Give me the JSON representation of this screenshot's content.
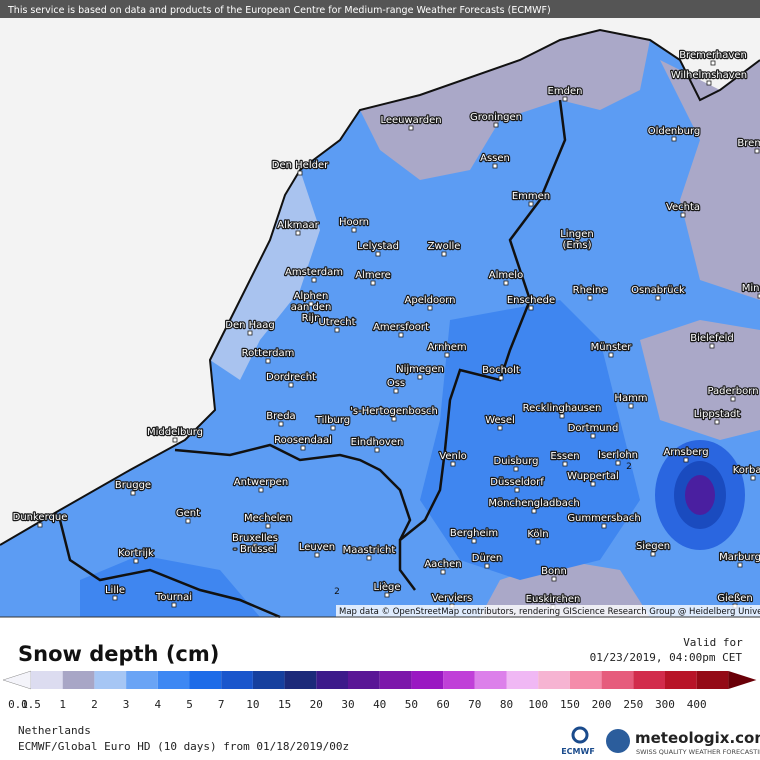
{
  "header": {
    "notice": "This service is based on data and products of the European Centre for Medium-range Weather Forecasts (ECMWF)"
  },
  "map": {
    "cities": [
      [
        "Bremerhaven"
      ],
      [
        "Wilhelmshaven"
      ],
      [
        "Emden"
      ],
      [
        "Leeuwarden"
      ],
      [
        "Groningen"
      ],
      [
        "Oldenburg"
      ],
      [
        "Bremen"
      ],
      [
        "Den Helder"
      ],
      [
        "Assen"
      ],
      [
        "Emmen"
      ],
      [
        "Vechta"
      ],
      [
        "Alkmaar"
      ],
      [
        "Hoorn"
      ],
      [
        "Lingen",
        "(Ems)"
      ],
      [
        "Lelystad"
      ],
      [
        "Zwolle"
      ],
      [
        "Amsterdam"
      ],
      [
        "Almere"
      ],
      [
        "Almelo"
      ],
      [
        "Rheine"
      ],
      [
        "Osnabrück"
      ],
      [
        "Minden"
      ],
      [
        "Alphen",
        "aan den",
        "Rijn"
      ],
      [
        "Apeldoorn"
      ],
      [
        "Enschede"
      ],
      [
        "Den Haag"
      ],
      [
        "Utrecht"
      ],
      [
        "Amersfoort"
      ],
      [
        "Bielefeld"
      ],
      [
        "Arnhem"
      ],
      [
        "Münster"
      ],
      [
        "Rotterdam"
      ],
      [
        "Nijmegen"
      ],
      [
        "Bocholt"
      ],
      [
        "Dordrecht"
      ],
      [
        "Oss"
      ],
      [
        "Paderborn"
      ],
      [
        "Hamm"
      ],
      [
        "Lippstadt"
      ],
      [
        "Breda"
      ],
      [
        "Tilburg"
      ],
      [
        "'s-Hertogenbosch"
      ],
      [
        "Recklinghausen"
      ],
      [
        "Wesel"
      ],
      [
        "Dortmund"
      ],
      [
        "Middelburg"
      ],
      [
        "Roosendaal"
      ],
      [
        "Eindhoven"
      ],
      [
        "Arnsberg"
      ],
      [
        "Korbach"
      ],
      [
        "Venlo"
      ],
      [
        "Duisburg"
      ],
      [
        "Essen"
      ],
      [
        "Iserlohn"
      ],
      [
        "Wuppertal"
      ],
      [
        "Brugge"
      ],
      [
        "Antwerpen"
      ],
      [
        "Düsseldorf"
      ],
      [
        "Mönchengladbach"
      ],
      [
        "Dunkerque"
      ],
      [
        "Gent"
      ],
      [
        "Mechelen"
      ],
      [
        "Gummersbach"
      ],
      [
        "Bergheim"
      ],
      [
        "Köln"
      ],
      [
        "Kortrijk"
      ],
      [
        "Bruxelles",
        "- Brussel"
      ],
      [
        "Leuven"
      ],
      [
        "Maastricht"
      ],
      [
        "Siegen"
      ],
      [
        "Marburg"
      ],
      [
        "Düren"
      ],
      [
        "Lille"
      ],
      [
        "Tournai"
      ],
      [
        "Liège"
      ],
      [
        "Aachen"
      ],
      [
        "Bonn"
      ],
      [
        "Euskirchen"
      ],
      [
        "Verviers"
      ],
      [
        "Gießen"
      ]
    ],
    "contour_labels": [
      2,
      2
    ],
    "attribution": "Map data © OpenStreetMap contributors, rendering GIScience Research Group @ Heidelberg University"
  },
  "legend": {
    "title": "Snow depth (cm)",
    "levels": [
      0.1,
      0.5,
      1,
      2,
      3,
      4,
      5,
      7,
      10,
      15,
      20,
      30,
      40,
      50,
      60,
      70,
      80,
      100,
      150,
      200,
      250,
      300,
      400
    ],
    "colors": [
      "#f4f4fa",
      "#dcdcf0",
      "#a8a6c6",
      "#a6c6f4",
      "#6aa4f5",
      "#3e88f3",
      "#1e6ce8",
      "#1a56cc",
      "#16409e",
      "#1c2a7a",
      "#3c1a8a",
      "#5a1696",
      "#7c16aa",
      "#9a18c2",
      "#c040d8",
      "#dc80ea",
      "#f0b8f4",
      "#f6b4d2",
      "#f48caa",
      "#e65c7c",
      "#d22c4c",
      "#b81428",
      "#940a16",
      "#6a0008"
    ]
  },
  "valid": {
    "label": "Valid for",
    "datetime": "01/23/2019, 04:00pm CET"
  },
  "footer": {
    "region": "Netherlands",
    "model": "ECMWF/Global Euro HD (10 days) from 01/18/2019/00z",
    "ecmwf": "ECMWF",
    "brand": "meteologix.com",
    "tagline": "SWISS QUALITY WEATHER FORECASTING"
  }
}
